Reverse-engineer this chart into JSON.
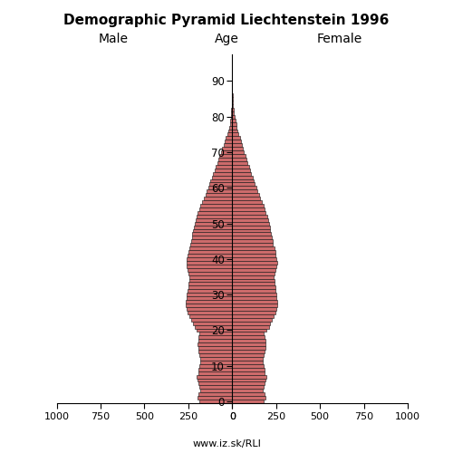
{
  "title": "Demographic Pyramid Liechtenstein 1996",
  "subtitle": "www.iz.sk/RLI",
  "male_label": "Male",
  "female_label": "Female",
  "age_label": "Age",
  "bar_color": "#cd6b6b",
  "bar_edge_color": "#111111",
  "male": [
    185,
    195,
    190,
    183,
    187,
    193,
    198,
    201,
    193,
    190,
    188,
    183,
    180,
    185,
    190,
    194,
    196,
    194,
    190,
    187,
    205,
    215,
    224,
    234,
    244,
    252,
    258,
    262,
    264,
    260,
    257,
    253,
    250,
    247,
    245,
    243,
    247,
    253,
    258,
    261,
    258,
    253,
    250,
    243,
    237,
    233,
    230,
    227,
    223,
    220,
    215,
    210,
    203,
    195,
    187,
    180,
    173,
    163,
    153,
    145,
    137,
    130,
    123,
    115,
    108,
    101,
    93,
    86,
    78,
    71,
    63,
    56,
    48,
    41,
    35,
    29,
    23,
    18,
    14,
    10,
    7,
    5,
    4,
    3,
    2,
    1,
    1,
    0,
    0,
    0,
    0,
    0,
    0,
    0,
    0,
    0,
    0,
    0
  ],
  "female": [
    177,
    188,
    183,
    175,
    180,
    185,
    190,
    193,
    186,
    183,
    180,
    175,
    172,
    178,
    184,
    188,
    190,
    188,
    183,
    180,
    197,
    208,
    216,
    226,
    236,
    244,
    250,
    255,
    257,
    254,
    251,
    247,
    244,
    241,
    239,
    237,
    241,
    248,
    253,
    256,
    253,
    249,
    245,
    239,
    233,
    229,
    225,
    222,
    218,
    215,
    210,
    206,
    200,
    192,
    183,
    177,
    170,
    161,
    152,
    144,
    136,
    130,
    123,
    116,
    109,
    103,
    96,
    89,
    82,
    75,
    68,
    62,
    55,
    49,
    43,
    37,
    32,
    27,
    22,
    17,
    13,
    10,
    8,
    6,
    4,
    3,
    2,
    1,
    1,
    0,
    0,
    0,
    0,
    0,
    0,
    0,
    0,
    0
  ]
}
